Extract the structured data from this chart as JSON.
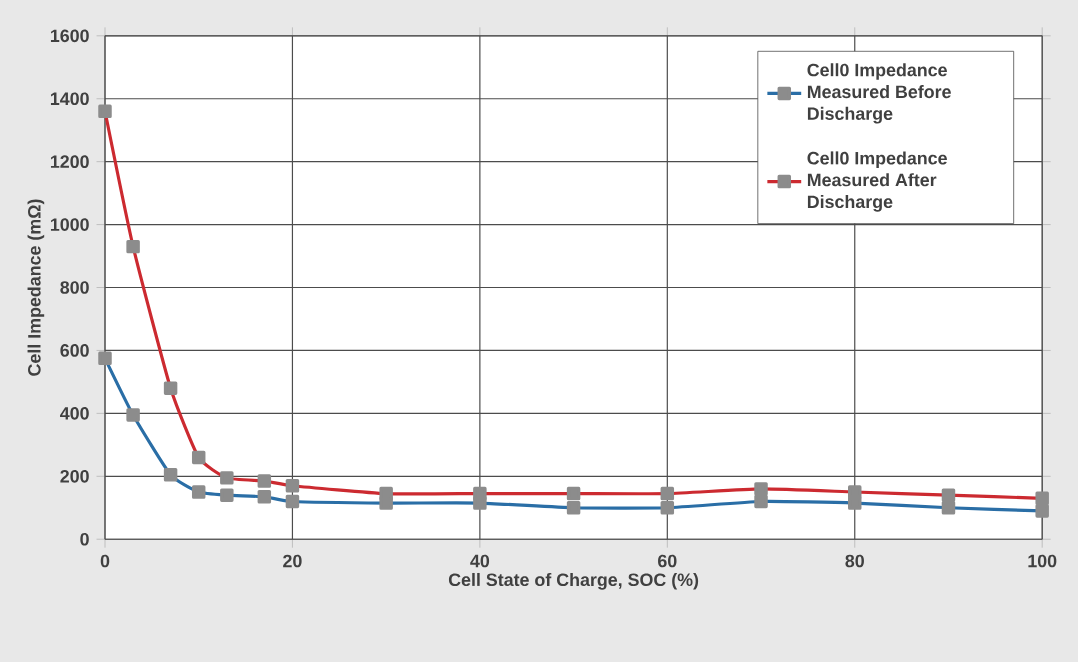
{
  "chart_data": {
    "type": "line",
    "xlabel": "Cell State of Charge, SOC (%)",
    "ylabel": "Cell Impedance (mΩ)",
    "x": [
      0,
      3,
      7,
      10,
      13,
      17,
      20,
      30,
      40,
      50,
      60,
      70,
      80,
      90,
      100
    ],
    "series": [
      {
        "name": "Cell0 Impedance Measured Before Discharge",
        "color": "#2a6ea6",
        "values": [
          575,
          395,
          205,
          150,
          140,
          135,
          120,
          115,
          115,
          100,
          100,
          120,
          115,
          100,
          90
        ]
      },
      {
        "name": "Cell0 Impedance Measured After Discharge",
        "color": "#cc2a30",
        "values": [
          1360,
          930,
          480,
          260,
          195,
          185,
          170,
          145,
          145,
          145,
          145,
          160,
          150,
          140,
          130
        ]
      }
    ],
    "xlim": [
      0,
      100
    ],
    "xticks": [
      0,
      20,
      40,
      60,
      80,
      100
    ],
    "ylim": [
      0,
      1600
    ],
    "yticks": [
      0,
      200,
      400,
      600,
      800,
      1000,
      1200,
      1400,
      1600
    ],
    "grid": true,
    "legend": "top right",
    "marker": "square",
    "line_style": "solid"
  }
}
